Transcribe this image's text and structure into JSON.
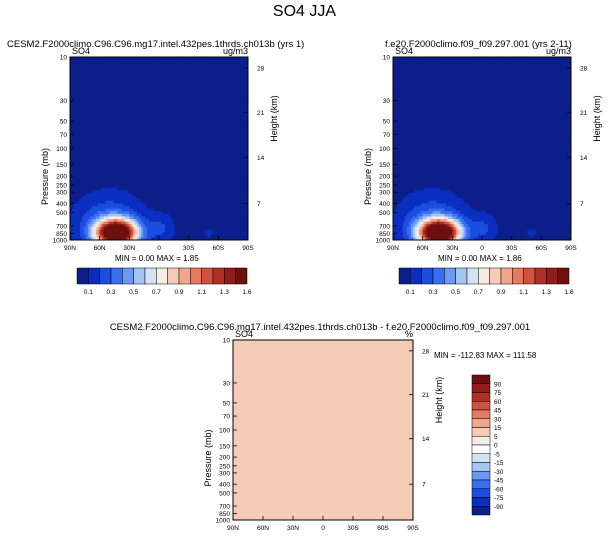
{
  "page_title": "SO4 JJA",
  "chart_data": [
    {
      "type": "heatmap",
      "title": "CESM2.F2000climo.C96.C96.mg17.intel.432pes.1thrds.ch013b (yrs 1)",
      "variable": "SO4",
      "units": "ug/m3",
      "xlabel": "",
      "ylabel": "Pressure (mb)",
      "y2label": "Height (km)",
      "x_ticks": [
        "90N",
        "60N",
        "30N",
        "0",
        "30S",
        "60S",
        "90S"
      ],
      "y_ticks": [
        10,
        30,
        50,
        70,
        100,
        150,
        200,
        250,
        300,
        400,
        500,
        700,
        850,
        1000
      ],
      "y2_ticks": [
        28,
        21,
        14,
        7
      ],
      "stats": {
        "min_label": "MIN =",
        "min": "0.00",
        "max_label": "MAX =",
        "max": "1.85"
      },
      "levels": [
        0.1,
        0.2,
        0.3,
        0.4,
        0.5,
        0.6,
        0.7,
        0.8,
        0.9,
        1.0,
        1.1,
        1.2,
        1.3,
        1.4,
        1.6
      ],
      "levels_labeled": [
        "0.1",
        "0.3",
        "0.5",
        "0.7",
        "0.9",
        "1.1",
        "1.3",
        "1.6"
      ],
      "peak": {
        "lat_label": "30N",
        "pressure_mb": 850,
        "value": 1.85
      }
    },
    {
      "type": "heatmap",
      "title": "f.e20.F2000climo.f09_f09.297.001 (yrs 2-11)",
      "variable": "SO4",
      "units": "ug/m3",
      "xlabel": "",
      "ylabel": "Pressure (mb)",
      "y2label": "Height (km)",
      "x_ticks": [
        "90N",
        "60N",
        "30N",
        "0",
        "30S",
        "60S",
        "90S"
      ],
      "y_ticks": [
        10,
        30,
        50,
        70,
        100,
        150,
        200,
        250,
        300,
        400,
        500,
        700,
        850,
        1000
      ],
      "y2_ticks": [
        28,
        21,
        14,
        7
      ],
      "stats": {
        "min_label": "MIN =",
        "min": "0.00",
        "max_label": "MAX =",
        "max": "1.86"
      },
      "levels": [
        0.1,
        0.2,
        0.3,
        0.4,
        0.5,
        0.6,
        0.7,
        0.8,
        0.9,
        1.0,
        1.1,
        1.2,
        1.3,
        1.4,
        1.6
      ],
      "levels_labeled": [
        "0.1",
        "0.3",
        "0.5",
        "0.7",
        "0.9",
        "1.1",
        "1.3",
        "1.6"
      ],
      "peak": {
        "lat_label": "30N",
        "pressure_mb": 850,
        "value": 1.86
      }
    },
    {
      "type": "heatmap",
      "title": "CESM2.F2000climo.C96.C96.mg17.intel.432pes.1thrds.ch013b - f.e20.F2000climo.f09_f09.297.001",
      "variable": "SO4",
      "units": "%",
      "xlabel": "",
      "ylabel": "Pressure (mb)",
      "y2label": "Height (km)",
      "x_ticks": [
        "90N",
        "60N",
        "30N",
        "0",
        "30S",
        "60S",
        "90S"
      ],
      "y_ticks": [
        10,
        30,
        50,
        70,
        100,
        150,
        200,
        250,
        300,
        400,
        500,
        700,
        850,
        1000
      ],
      "y2_ticks": [
        28,
        21,
        14,
        7
      ],
      "stats": {
        "min_label": "MIN =",
        "min": "-112.83",
        "max_label": "MAX =",
        "max": "111.58"
      },
      "levels": [
        -90,
        -75,
        -60,
        -45,
        -30,
        -15,
        -5,
        0,
        5,
        15,
        30,
        45,
        60,
        75,
        90
      ],
      "levels_labeled": [
        "90",
        "75",
        "60",
        "45",
        "30",
        "15",
        "5",
        "0",
        "-5",
        "-15",
        "-30",
        "-45",
        "-60",
        "-75",
        "-90"
      ]
    }
  ],
  "colors": {
    "seq": [
      "#0c1e8a",
      "#0a2fc0",
      "#1b4de0",
      "#3a6ef0",
      "#6a9af2",
      "#a6c6f2",
      "#d2e4f4",
      "#f6ece4",
      "#f5cbb6",
      "#f0a68a",
      "#e47a60",
      "#d0513e",
      "#b22f26",
      "#921c1a",
      "#6e0f10"
    ],
    "div": [
      "#0c1e8a",
      "#0a2fc0",
      "#1b4de0",
      "#3a6ef0",
      "#6a9af2",
      "#a6c6f2",
      "#d2e4f4",
      "#ffffff",
      "#f6ece4",
      "#f5cbb6",
      "#f0a68a",
      "#e47a60",
      "#d0513e",
      "#b22f26",
      "#921c1a",
      "#6e0f10"
    ]
  }
}
